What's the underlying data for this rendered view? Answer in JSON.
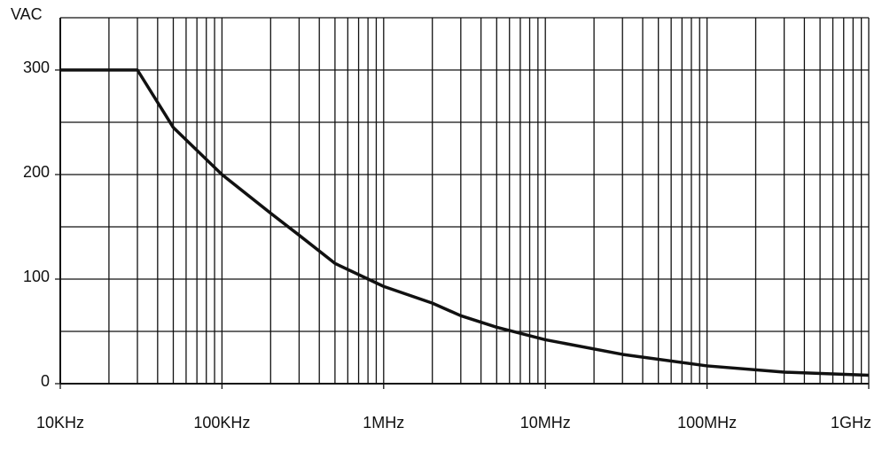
{
  "chart_data": {
    "type": "line",
    "y_label": "VAC",
    "x_log": true,
    "x": [
      10000,
      30000,
      50000,
      100000,
      200000,
      300000,
      500000,
      1000000,
      2000000,
      3000000,
      5000000,
      10000000,
      30000000,
      100000000,
      300000000,
      1000000000
    ],
    "series": [
      {
        "name": "VAC",
        "color": "#111111",
        "values": [
          300,
          300,
          245,
          200,
          163,
          142,
          115,
          93,
          77,
          65,
          54,
          42,
          28,
          17,
          11,
          8
        ]
      }
    ],
    "xlim": [
      10000,
      1000000000
    ],
    "xticks": [
      {
        "value": 10000,
        "label": "10KHz"
      },
      {
        "value": 100000,
        "label": "100KHz"
      },
      {
        "value": 1000000,
        "label": "1MHz"
      },
      {
        "value": 10000000,
        "label": "10MHz"
      },
      {
        "value": 100000000,
        "label": "100MHz"
      },
      {
        "value": 1000000000,
        "label": "1GHz"
      }
    ],
    "ylim": [
      0,
      350
    ],
    "yticks": [
      0,
      100,
      200,
      300
    ],
    "yminor": [
      50,
      150,
      250,
      350
    ],
    "grid": true
  }
}
